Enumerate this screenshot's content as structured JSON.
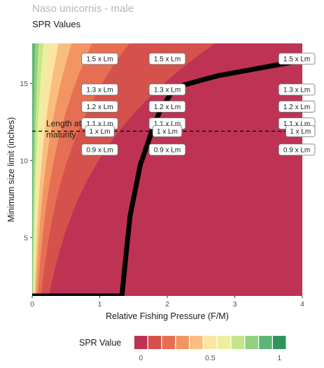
{
  "chart_data": {
    "type": "heatmap",
    "title": "Naso unicornis - male",
    "subtitle": "SPR Values",
    "xlabel": "Relative Fishing Pressure (F/M)",
    "ylabel": "Minimum size limit (inches)",
    "xlim": [
      0,
      4
    ],
    "ylim": [
      1.2,
      17.6
    ],
    "xticks": [
      0,
      1,
      2,
      3,
      4
    ],
    "yticks": [
      5,
      10,
      15
    ],
    "grid": false,
    "colors": [
      "#be3354",
      "#d5524c",
      "#e66f53",
      "#f39563",
      "#f9be7e",
      "#fbe5a2",
      "#ecef9e",
      "#c6e58b",
      "#92d17f",
      "#5db576",
      "#32945d"
    ],
    "contour_levels": [
      0.1,
      0.2,
      0.3,
      0.4,
      0.5,
      0.6,
      0.7,
      0.8,
      0.9,
      1.0
    ],
    "reference_line": {
      "label": "Length at maturity",
      "y": 11.9,
      "style": "dashed"
    },
    "length_multiples": [
      {
        "label": "1.5 x Lm",
        "y": 16.6
      },
      {
        "label": "1.3 x Lm",
        "y": 14.6
      },
      {
        "label": "1.2 x Lm",
        "y": 13.5
      },
      {
        "label": "1.1 x Lm",
        "y": 12.4
      },
      {
        "label": "1 x Lm",
        "y": 11.9
      },
      {
        "label": "0.9 x Lm",
        "y": 10.7
      }
    ],
    "label_columns_x": [
      1,
      2,
      4
    ],
    "spr30_line": {
      "x": [
        0,
        1.33,
        1.36,
        1.45,
        1.6,
        1.78,
        1.9,
        2.05,
        2.25,
        2.5,
        2.75,
        3.0,
        3.25,
        3.5,
        3.75,
        4.0
      ],
      "y": [
        1.2,
        1.2,
        2.6,
        6.4,
        9.7,
        12.0,
        13.3,
        14.3,
        14.9,
        15.2,
        15.5,
        15.7,
        15.9,
        16.1,
        16.3,
        16.5
      ]
    },
    "legend": {
      "title": "SPR Value",
      "position": "bottom",
      "ticks": [
        0,
        0.5,
        1
      ]
    }
  }
}
